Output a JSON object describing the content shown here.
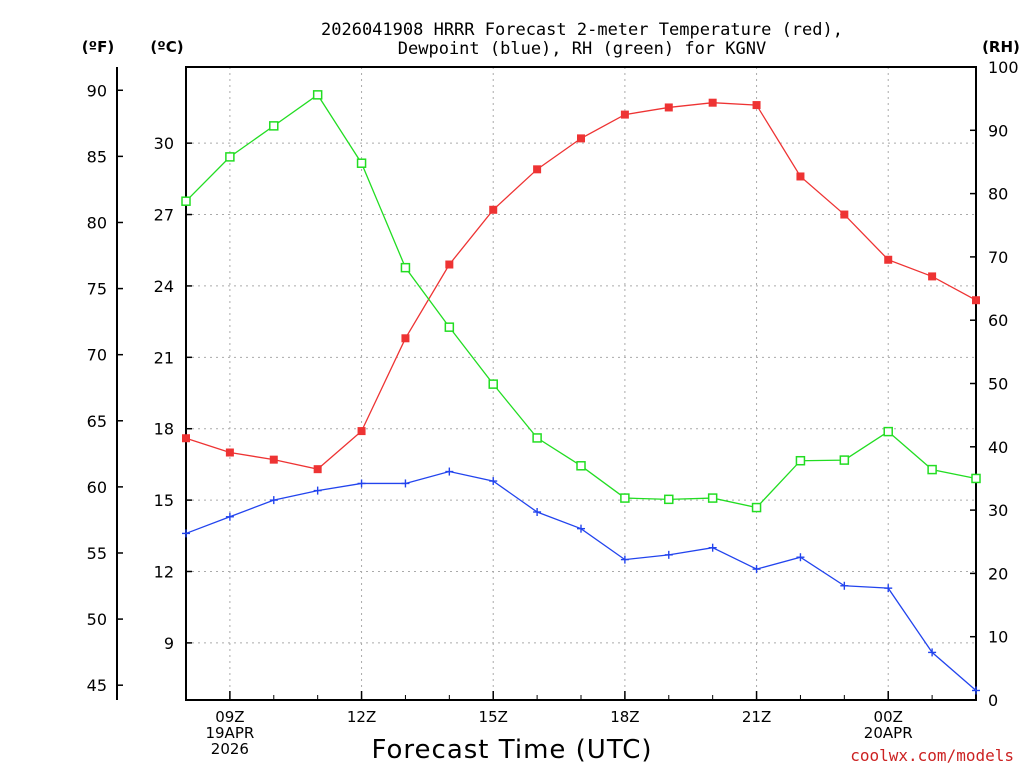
{
  "chart_data": {
    "type": "line",
    "title_line1": "2026041908 HRRR Forecast 2-meter Temperature (red),",
    "title_line2": "Dewpoint (blue), RH (green) for KGNV",
    "xlabel": "Forecast Time (UTC)",
    "credit": "coolwx.com/models",
    "unit_labels": {
      "fahrenheit": "(ºF)",
      "celsius": "(ºC)",
      "rh": "(RH)"
    },
    "x_hours": [
      8,
      9,
      10,
      11,
      12,
      13,
      14,
      15,
      16,
      17,
      18,
      19,
      20,
      21,
      22,
      23,
      24,
      25,
      26
    ],
    "x_tick_labels": [
      {
        "hour": 9,
        "lines": [
          "09Z",
          "19APR",
          "2026"
        ]
      },
      {
        "hour": 12,
        "lines": [
          "12Z"
        ]
      },
      {
        "hour": 15,
        "lines": [
          "15Z"
        ]
      },
      {
        "hour": 18,
        "lines": [
          "18Z"
        ]
      },
      {
        "hour": 21,
        "lines": [
          "21Z"
        ]
      },
      {
        "hour": 24,
        "lines": [
          "00Z",
          "20APR"
        ]
      }
    ],
    "xlim": [
      8,
      26
    ],
    "y_celsius": {
      "range": [
        6.6,
        33.2
      ],
      "ticks": [
        9,
        12,
        15,
        18,
        21,
        24,
        27,
        30
      ]
    },
    "y_fahrenheit": {
      "ticks": [
        45,
        50,
        55,
        60,
        65,
        70,
        75,
        80,
        85,
        90
      ]
    },
    "y_rh": {
      "range": [
        0,
        100
      ],
      "ticks": [
        0,
        10,
        20,
        30,
        40,
        50,
        60,
        70,
        80,
        90,
        100
      ]
    },
    "grid": true,
    "series": [
      {
        "name": "Temperature",
        "axis": "celsius",
        "color": "#ee3333",
        "marker": "filled-square",
        "values": [
          17.6,
          17.0,
          16.7,
          16.3,
          17.9,
          21.8,
          24.9,
          27.2,
          28.9,
          30.2,
          31.2,
          31.5,
          31.7,
          31.6,
          28.6,
          27.0,
          25.1,
          24.4,
          23.4
        ]
      },
      {
        "name": "Dewpoint",
        "axis": "celsius",
        "color": "#2244ee",
        "marker": "plus",
        "values": [
          13.6,
          14.3,
          15.0,
          15.4,
          15.7,
          15.7,
          16.2,
          15.8,
          14.5,
          13.8,
          12.5,
          12.7,
          13.0,
          12.1,
          12.6,
          11.4,
          11.3,
          8.6,
          7.0
        ]
      },
      {
        "name": "RH",
        "axis": "rh",
        "color": "#22dd22",
        "marker": "open-square",
        "values": [
          78.8,
          85.8,
          90.7,
          95.6,
          84.8,
          68.3,
          58.9,
          49.9,
          41.4,
          37.0,
          31.9,
          31.7,
          31.9,
          30.4,
          37.8,
          37.9,
          42.4,
          36.4,
          35.0
        ]
      }
    ],
    "colors": {
      "grid": "#aaaaaa",
      "axis": "#000000",
      "credit": "#cc2222"
    }
  }
}
